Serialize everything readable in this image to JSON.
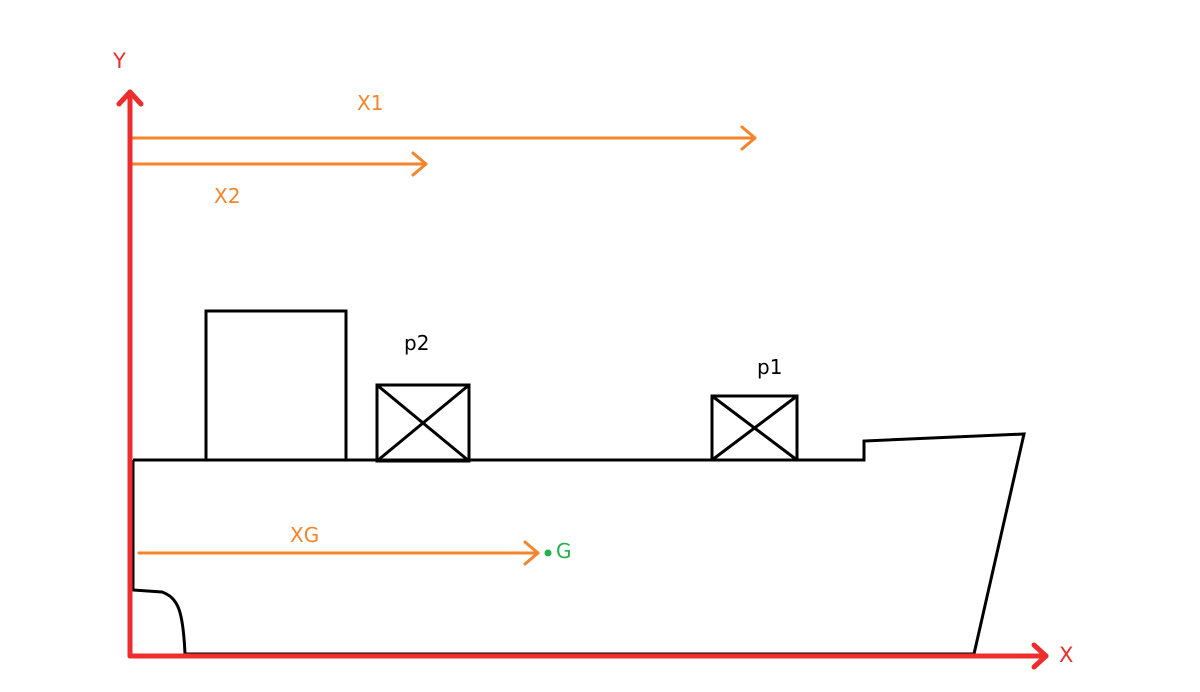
{
  "axes": {
    "x_label": "X",
    "y_label": "Y",
    "color": "#ee2d2d"
  },
  "distances": {
    "x1_label": "X1",
    "x2_label": "X2",
    "xg_label": "XG",
    "color": "#f5842a"
  },
  "point_g": {
    "label": "G",
    "color": "#22b14c"
  },
  "cargo": {
    "p1_label": "p1",
    "p2_label": "p2"
  },
  "outline_color": "#000000"
}
